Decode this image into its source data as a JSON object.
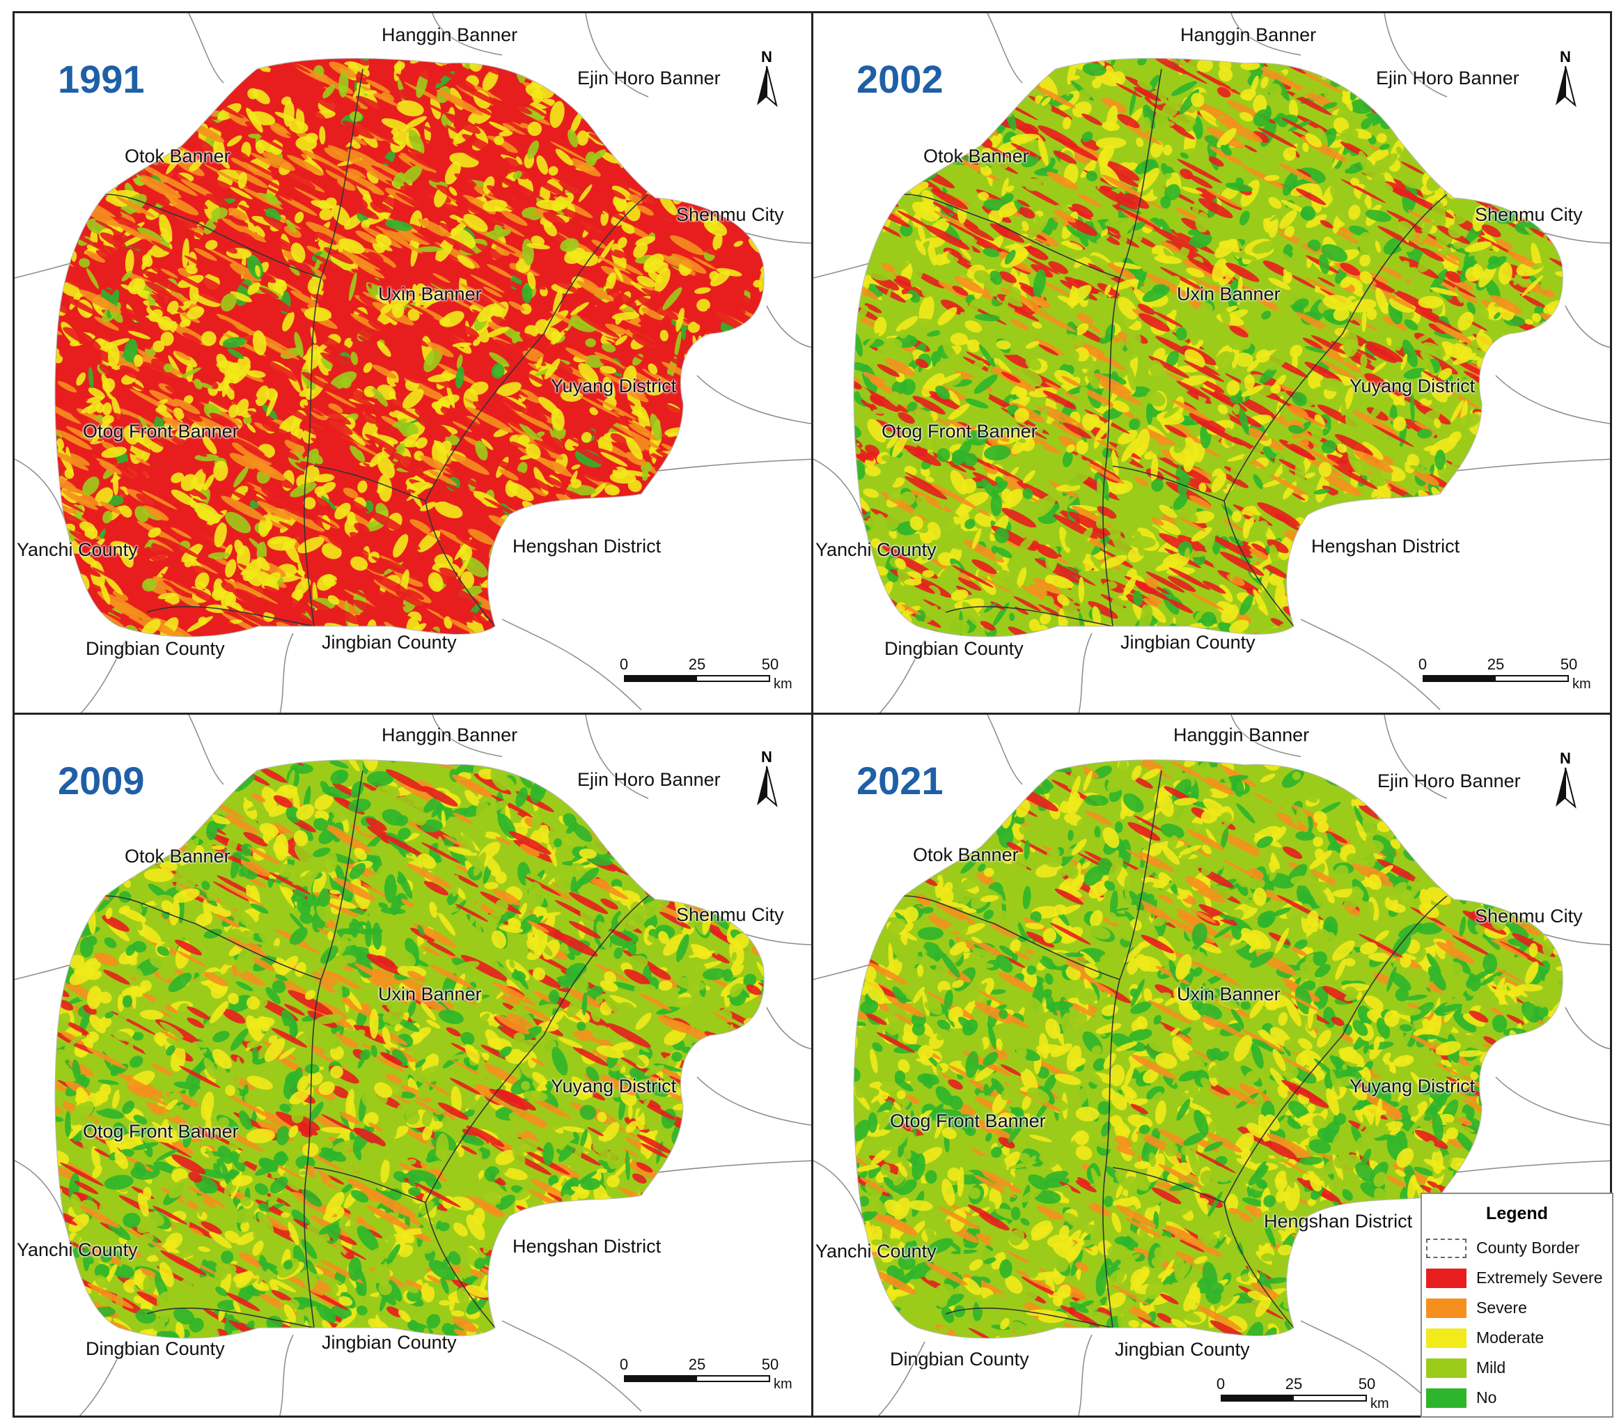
{
  "panels": [
    {
      "year": "1991"
    },
    {
      "year": "2002"
    },
    {
      "year": "2009"
    },
    {
      "year": "2021"
    }
  ],
  "places": {
    "hanggin": "Hanggin Banner",
    "ejin": "Ejin Horo Banner",
    "otok": "Otok Banner",
    "shenmu": "Shenmu City",
    "uxin": "Uxin Banner",
    "yuyang": "Yuyang District",
    "otog_front": "Otog Front Banner",
    "yanchi": "Yanchi County",
    "hengshan": "Hengshan District",
    "dingbian": "Dingbian County",
    "jingbian": "Jingbian County"
  },
  "north_label": "N",
  "scale": {
    "t0": "0",
    "t1": "25",
    "t2": "50",
    "unit": "km"
  },
  "legend": {
    "title": "Legend",
    "items": [
      {
        "label": "County Border",
        "color": "#ffffff"
      },
      {
        "label": "Extremely Severe",
        "color": "#e81e1e"
      },
      {
        "label": "Severe",
        "color": "#f5901e"
      },
      {
        "label": "Moderate",
        "color": "#f2ea1a"
      },
      {
        "label": "Mild",
        "color": "#9ccc1a"
      },
      {
        "label": "No",
        "color": "#2db52b"
      }
    ]
  },
  "severity_mix": {
    "1991": {
      "Extremely Severe": 0.42,
      "Severe": 0.16,
      "Moderate": 0.32,
      "Mild": 0.08,
      "No": 0.02
    },
    "2002": {
      "Extremely Severe": 0.18,
      "Severe": 0.12,
      "Moderate": 0.25,
      "Mild": 0.3,
      "No": 0.15
    },
    "2009": {
      "Extremely Severe": 0.1,
      "Severe": 0.12,
      "Moderate": 0.22,
      "Mild": 0.33,
      "No": 0.23
    },
    "2021": {
      "Extremely Severe": 0.05,
      "Severe": 0.1,
      "Moderate": 0.25,
      "Mild": 0.34,
      "No": 0.26
    }
  }
}
